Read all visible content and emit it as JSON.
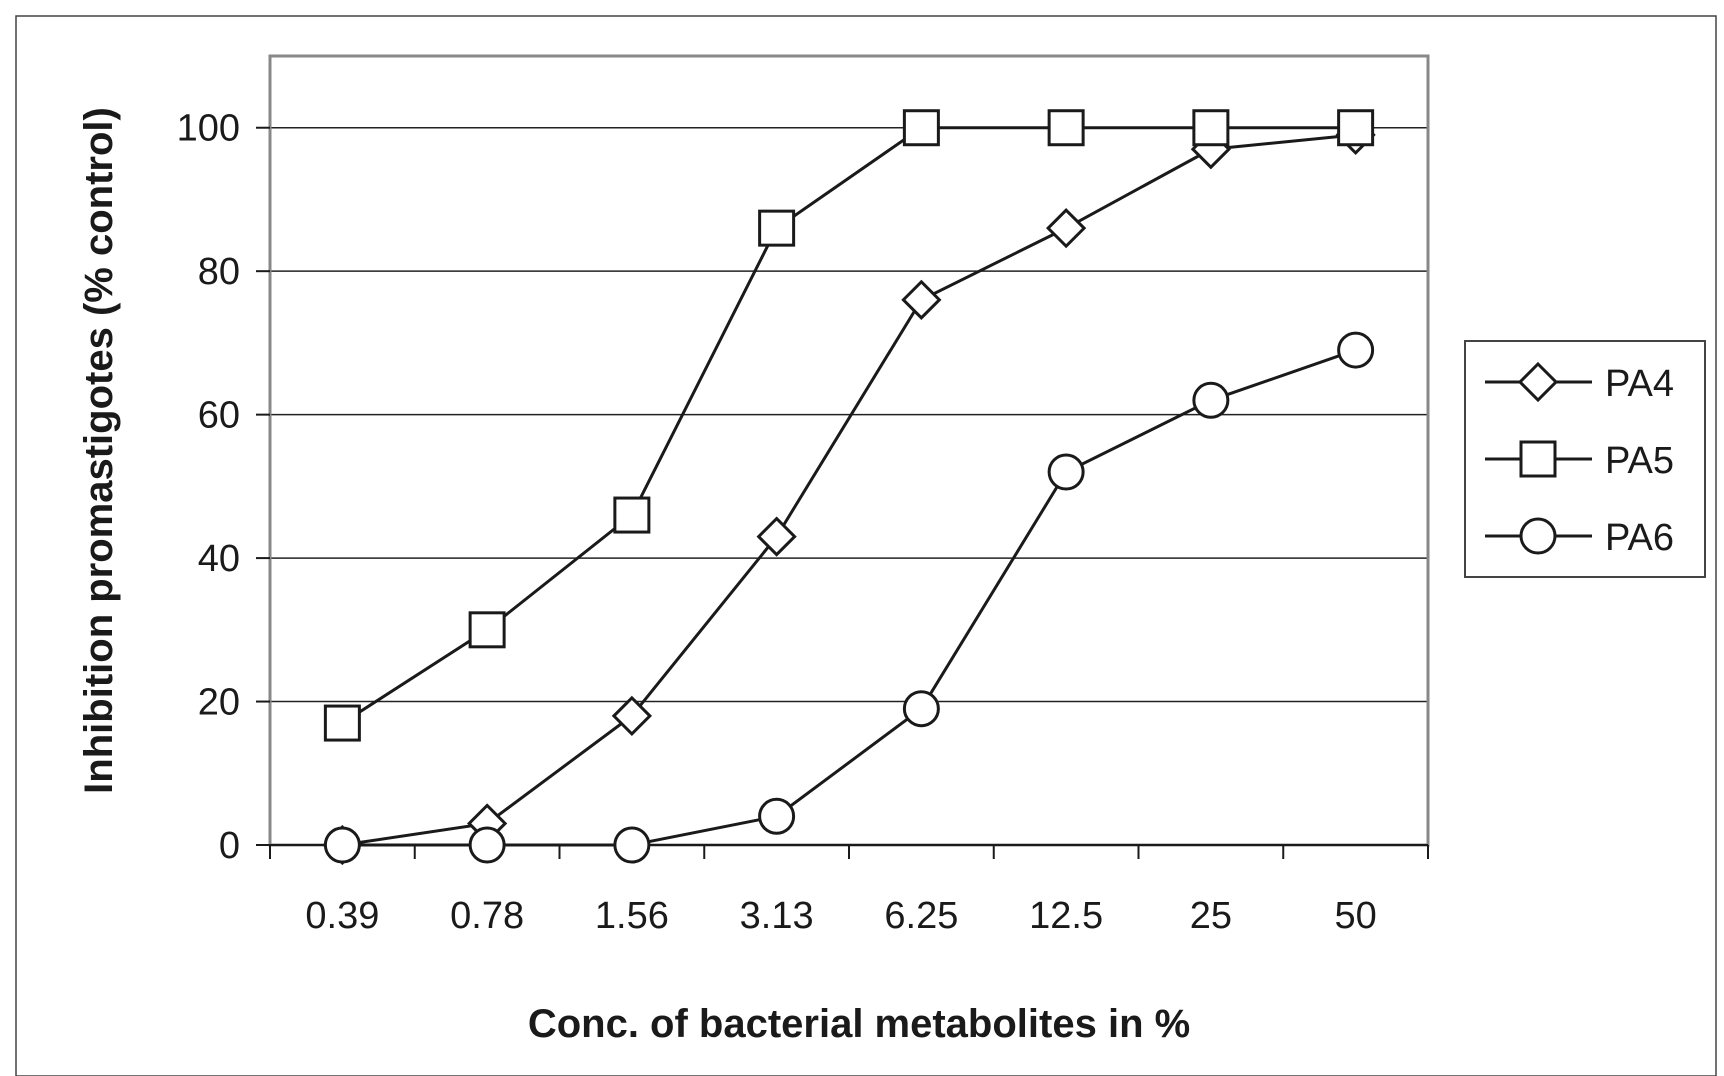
{
  "chart_data": {
    "type": "line",
    "title": "",
    "xlabel": "Conc. of bacterial metabolites in %",
    "ylabel": "Inhibition promastigotes (% control)",
    "categories": [
      "0.39",
      "0.78",
      "1.56",
      "3.13",
      "6.25",
      "12.5",
      "25",
      "50"
    ],
    "ylim": [
      0,
      110
    ],
    "yticks": [
      0,
      20,
      40,
      60,
      80,
      100
    ],
    "grid": true,
    "legend_position": "right",
    "series": [
      {
        "name": "PA4",
        "marker": "diamond",
        "values": [
          0,
          3,
          18,
          43,
          76,
          86,
          97,
          99
        ]
      },
      {
        "name": "PA5",
        "marker": "square",
        "values": [
          17,
          30,
          46,
          86,
          100,
          100,
          100,
          100
        ]
      },
      {
        "name": "PA6",
        "marker": "circle",
        "values": [
          0,
          0,
          0,
          4,
          19,
          52,
          62,
          69
        ]
      }
    ],
    "colors": {
      "line": "#1a1a1a",
      "grid": "#222222",
      "frame": "#888888",
      "marker_fill": "#ffffff"
    }
  }
}
